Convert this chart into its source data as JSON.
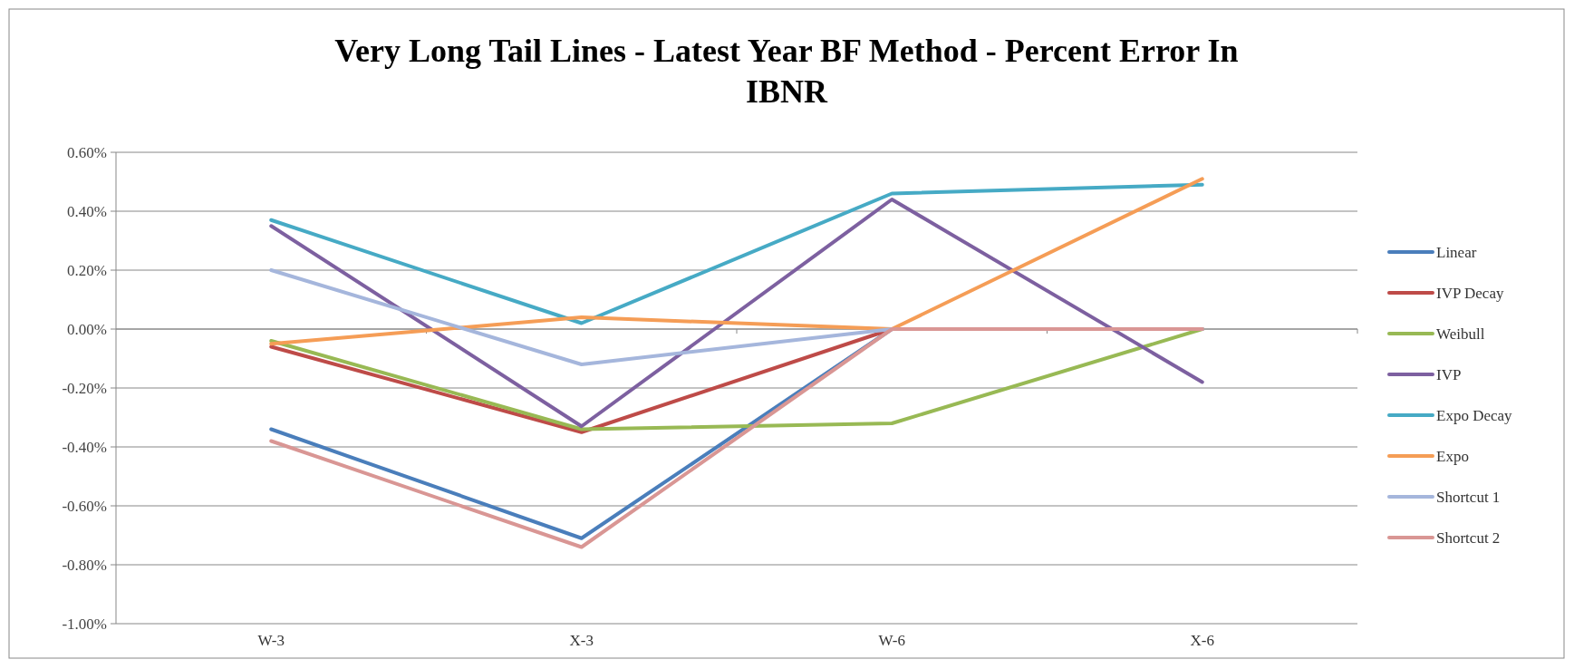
{
  "chart_data": {
    "type": "line",
    "title": "Very Long Tail Lines - Latest Year BF Method - Percent Error In IBNR",
    "categories": [
      "W-3",
      "X-3",
      "W-6",
      "X-6"
    ],
    "series": [
      {
        "name": "Linear",
        "color": "#4a7ebb",
        "values": [
          -0.34,
          -0.71,
          0,
          0
        ]
      },
      {
        "name": "IVP Decay",
        "color": "#be4b48",
        "values": [
          -0.06,
          -0.35,
          0,
          0
        ]
      },
      {
        "name": "Weibull",
        "color": "#98b954",
        "values": [
          -0.04,
          -0.34,
          -0.32,
          0
        ]
      },
      {
        "name": "IVP",
        "color": "#7d60a0",
        "values": [
          0.35,
          -0.33,
          0.44,
          -0.18
        ]
      },
      {
        "name": "Expo Decay",
        "color": "#46aac5",
        "values": [
          0.37,
          0.02,
          0.46,
          0.49
        ]
      },
      {
        "name": "Expo",
        "color": "#f59d56",
        "values": [
          -0.05,
          0.04,
          0,
          0.51
        ]
      },
      {
        "name": "Shortcut 1",
        "color": "#a5b6dc",
        "values": [
          0.2,
          -0.12,
          0,
          0
        ]
      },
      {
        "name": "Shortcut 2",
        "color": "#d99694",
        "values": [
          -0.38,
          -0.74,
          0,
          0
        ]
      }
    ],
    "ylim": [
      -1,
      0.6
    ],
    "yticks": [
      {
        "value": -1,
        "label": "-1.00%"
      },
      {
        "value": -0.8,
        "label": "-0.80%"
      },
      {
        "value": -0.6,
        "label": "-0.60%"
      },
      {
        "value": -0.4,
        "label": "-0.40%"
      },
      {
        "value": -0.2,
        "label": "-0.20%"
      },
      {
        "value": 0,
        "label": "0.00%"
      },
      {
        "value": 0.2,
        "label": "0.20%"
      },
      {
        "value": 0.4,
        "label": "0.40%"
      },
      {
        "value": 0.6,
        "label": "0.60%"
      }
    ],
    "grid": "y",
    "legend": "right",
    "marker": "none",
    "line_style": "solid"
  }
}
